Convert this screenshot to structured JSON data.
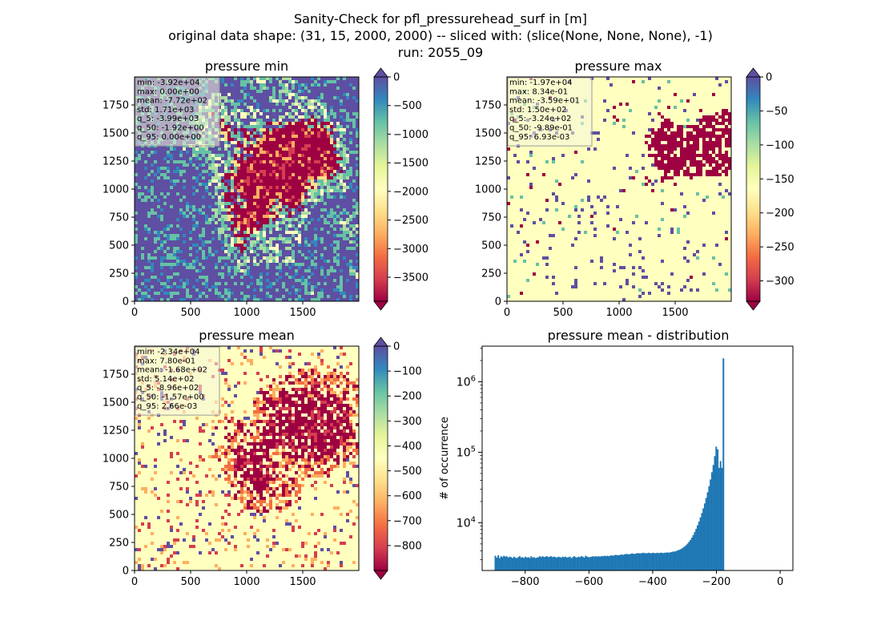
{
  "figure": {
    "title_lines": [
      "Sanity-Check for pfl_pressurehead_surf in [m]",
      "original data shape: (31, 15, 2000, 2000) -- sliced with: (slice(None, None, None), -1)",
      "run: 2055_09"
    ]
  },
  "colors": {
    "spectral": [
      "#9e0142",
      "#d53e4f",
      "#f46d43",
      "#fdae61",
      "#fee08b",
      "#ffffbf",
      "#e6f598",
      "#abdda4",
      "#66c2a5",
      "#3288bd",
      "#5e4fa2"
    ],
    "histogram_bar": "#1f77b4",
    "stats_box_fill": "#f5f5dc",
    "stats_box_edge": "#999999"
  },
  "chart_data": [
    {
      "type": "heatmap",
      "title": "pressure min",
      "x_ticks": [
        "0",
        "500",
        "1000",
        "1500"
      ],
      "y_ticks": [
        "0",
        "250",
        "500",
        "750",
        "1000",
        "1250",
        "1500",
        "1750"
      ],
      "xlim": [
        0,
        2000
      ],
      "ylim": [
        0,
        2000
      ],
      "colorbar": {
        "min": -3920,
        "max": 0,
        "ticks": [
          "0",
          "−500",
          "−1000",
          "−1500",
          "−2000",
          "−2500",
          "−3000",
          "−3500"
        ],
        "extend_top_color": "#5e4fa2",
        "extend_bottom_color": "#9e0142"
      },
      "stats": [
        "min: -3.92e+04",
        "max: 0.00e+00",
        "mean: -7.72e+02",
        "std: 1.71e+03",
        "q_5: -3.99e+03",
        "q_50: -1.92e+00",
        "q_95: 0.00e+00"
      ]
    },
    {
      "type": "heatmap",
      "title": "pressure max",
      "x_ticks": [
        "0",
        "500",
        "1000",
        "1500"
      ],
      "y_ticks": [
        "0",
        "250",
        "500",
        "750",
        "1000",
        "1250",
        "1500",
        "1750"
      ],
      "xlim": [
        0,
        2000
      ],
      "ylim": [
        0,
        2000
      ],
      "colorbar": {
        "min": -330,
        "max": 0,
        "ticks": [
          "0",
          "−50",
          "−100",
          "−150",
          "−200",
          "−250",
          "−300"
        ],
        "extend_top_color": "#5e4fa2",
        "extend_bottom_color": "#9e0142"
      },
      "stats": [
        "min: -1.97e+04",
        "max: 8.34e-01",
        "mean: -3.59e+01",
        "std: 1.50e+02",
        "q_5: -3.24e+02",
        "q_50: -9.89e-01",
        "q_95: 6.93e-03"
      ]
    },
    {
      "type": "heatmap",
      "title": "pressure mean",
      "x_ticks": [
        "0",
        "500",
        "1000",
        "1500"
      ],
      "y_ticks": [
        "0",
        "250",
        "500",
        "750",
        "1000",
        "1250",
        "1500",
        "1750"
      ],
      "xlim": [
        0,
        2000
      ],
      "ylim": [
        0,
        2000
      ],
      "colorbar": {
        "min": -900,
        "max": 0,
        "ticks": [
          "0",
          "−100",
          "−200",
          "−300",
          "−400",
          "−500",
          "−600",
          "−700",
          "−800"
        ],
        "extend_top_color": "#5e4fa2",
        "extend_bottom_color": "#9e0142"
      },
      "stats": [
        "min: -2.34e+04",
        "max: 7.80e-01",
        "mean: -1.68e+02",
        "std: 5.14e+02",
        "q_5: -8.96e+02",
        "q_50: -1.57e+00",
        "q_95: 2.66e-03"
      ]
    },
    {
      "type": "bar",
      "title": "pressure mean - distribution",
      "ylabel": "# of occurrence",
      "y_scale": "log",
      "xlim": [
        -935,
        40
      ],
      "ylim": [
        2100,
        3200000
      ],
      "x_ticks": [
        "−800",
        "−600",
        "−400",
        "−200",
        "0"
      ],
      "y_ticks": [
        "10^4",
        "10^5",
        "10^6"
      ],
      "bin_width": 4.5,
      "x_start": -896,
      "counts": [
        3400,
        3200,
        3450,
        3150,
        3350,
        3250,
        3400,
        3300,
        3350,
        3200,
        3300,
        3250,
        3150,
        3300,
        3200,
        3150,
        3250,
        3350,
        3200,
        3250,
        3150,
        3300,
        3200,
        3250,
        3150,
        3350,
        3200,
        3250,
        3150,
        3200,
        3250,
        3350,
        3250,
        3350,
        3250,
        3300,
        3350,
        3250,
        3300,
        3350,
        3250,
        3300,
        3250,
        3200,
        3300,
        3250,
        3200,
        3300,
        3250,
        3300,
        3200,
        3250,
        3300,
        3150,
        3250,
        3350,
        3250,
        3200,
        3300,
        3250,
        3350,
        3300,
        3200,
        3400,
        3300,
        3250,
        3250,
        3300,
        3350,
        3300,
        3350,
        3300,
        3350,
        3300,
        3350,
        3350,
        3400,
        3350,
        3400,
        3350,
        3400,
        3450,
        3400,
        3450,
        3500,
        3450,
        3450,
        3500,
        3550,
        3500,
        3550,
        3600,
        3600,
        3550,
        3600,
        3650,
        3650,
        3600,
        3650,
        3700,
        3700,
        3650,
        3700,
        3750,
        3700,
        3700,
        3700,
        3750,
        3700,
        3700,
        3750,
        3700,
        3700,
        3750,
        3700,
        3750,
        3750,
        3700,
        3750,
        3750,
        3800,
        3750,
        3800,
        3850,
        3900,
        3900,
        3950,
        4050,
        4100,
        4200,
        4300,
        4450,
        4600,
        4800,
        5050,
        5350,
        5700,
        6150,
        6700,
        7400,
        8200,
        9200,
        10400,
        11900,
        13700,
        16000,
        18800,
        22500,
        27000,
        33000,
        41000,
        52000,
        66000,
        88000,
        120000,
        110000,
        60000,
        75000,
        60000,
        2150000
      ]
    }
  ]
}
